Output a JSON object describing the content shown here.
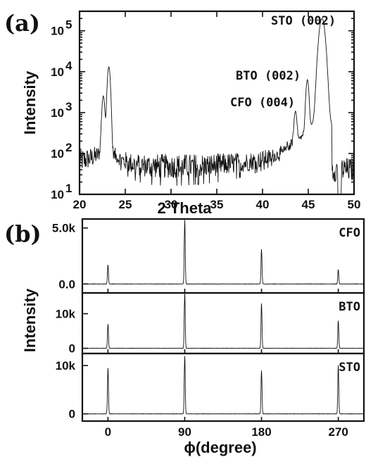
{
  "chart_data": [
    {
      "panel": "(a)",
      "type": "line",
      "xlabel": "2 Theta",
      "ylabel": "Intensity",
      "xlim": [
        20,
        50
      ],
      "ylim": [
        10,
        300000
      ],
      "yscale": "log",
      "xticks": [
        "20",
        "25",
        "30",
        "35",
        "40",
        "45",
        "50"
      ],
      "yticks": [
        {
          "base": "10",
          "exp": "1",
          "value": 10
        },
        {
          "base": "10",
          "exp": "2",
          "value": 100
        },
        {
          "base": "10",
          "exp": "3",
          "value": 1000
        },
        {
          "base": "10",
          "exp": "4",
          "value": 10000
        },
        {
          "base": "10",
          "exp": "5",
          "value": 100000
        }
      ],
      "annotations": [
        {
          "text": "STO (002)",
          "x": 46.5,
          "y": 200000
        },
        {
          "text": "BTO (002)",
          "x": 44.9,
          "y": 6000
        },
        {
          "text": "CFO (004)",
          "x": 43.6,
          "y": 900
        }
      ],
      "background": 55,
      "peaks": [
        {
          "x": 22.6,
          "y": 2400
        },
        {
          "x": 23.2,
          "y": 13000
        },
        {
          "x": 43.6,
          "y": 900
        },
        {
          "x": 44.9,
          "y": 6000
        },
        {
          "x": 46.5,
          "y": 200000
        }
      ]
    },
    {
      "panel": "(b)",
      "type": "line",
      "xlabel": "ϕ(degree)",
      "ylabel": "Intensity",
      "xlim": [
        -30,
        300
      ],
      "xticks": [
        0,
        90,
        180,
        270
      ],
      "series": [
        {
          "name": "CFO",
          "ylim": [
            -800,
            5800
          ],
          "yticks": [
            {
              "label": "5.0k",
              "value": 5000
            },
            {
              "label": "0.0",
              "value": 0
            }
          ],
          "peaks": [
            {
              "x": 0,
              "y": 1700
            },
            {
              "x": 90,
              "y": 5700
            },
            {
              "x": 180,
              "y": 3100
            },
            {
              "x": 270,
              "y": 1300
            }
          ]
        },
        {
          "name": "BTO",
          "ylim": [
            -1500,
            16000
          ],
          "yticks": [
            {
              "label": "10k",
              "value": 10000
            },
            {
              "label": "0",
              "value": 0
            }
          ],
          "peaks": [
            {
              "x": 0,
              "y": 7000
            },
            {
              "x": 90,
              "y": 16000
            },
            {
              "x": 180,
              "y": 13000
            },
            {
              "x": 270,
              "y": 8000
            }
          ]
        },
        {
          "name": "STO",
          "ylim": [
            -1500,
            12500
          ],
          "yticks": [
            {
              "label": "10k",
              "value": 10000
            },
            {
              "label": "0",
              "value": 0
            }
          ],
          "peaks": [
            {
              "x": 0,
              "y": 9500
            },
            {
              "x": 90,
              "y": 12000
            },
            {
              "x": 180,
              "y": 9000
            },
            {
              "x": 270,
              "y": 10000
            }
          ]
        }
      ]
    }
  ]
}
